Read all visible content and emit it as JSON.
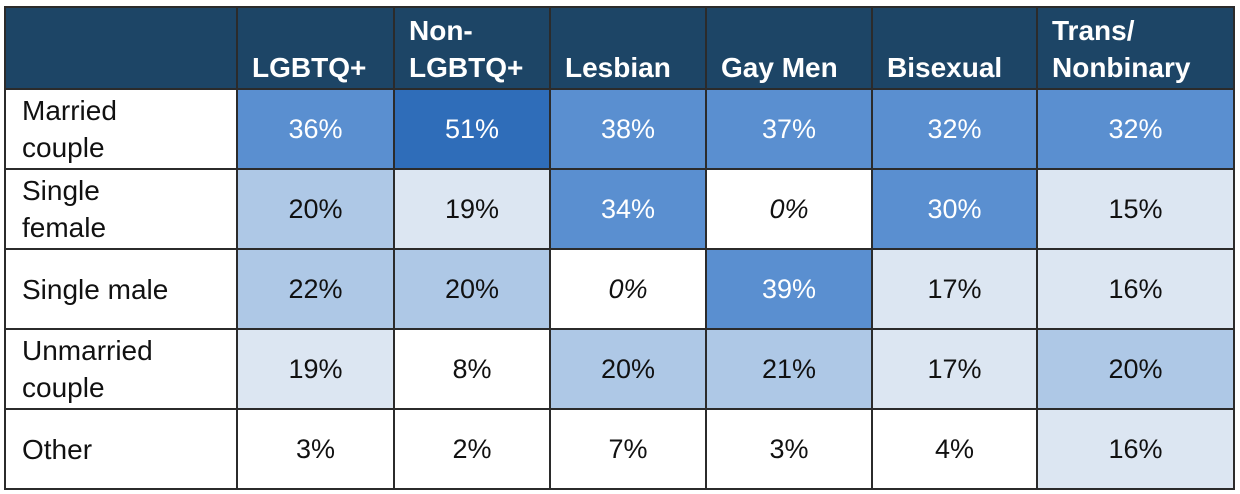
{
  "chart_data": {
    "type": "heatmap",
    "columns": [
      "LGBTQ+",
      "Non-LGBTQ+",
      "Lesbian",
      "Gay Men",
      "Bisexual",
      "Trans/ Nonbinary"
    ],
    "column_lines": [
      [
        "LGBTQ+"
      ],
      [
        "Non-",
        "LGBTQ+"
      ],
      [
        "Lesbian"
      ],
      [
        "Gay Men"
      ],
      [
        "Bisexual"
      ],
      [
        "Trans/",
        "Nonbinary"
      ]
    ],
    "rows": [
      {
        "label": "Married couple",
        "label_lines": [
          "Married",
          "couple"
        ],
        "values": [
          36,
          51,
          38,
          37,
          32,
          32
        ]
      },
      {
        "label": "Single female",
        "label_lines": [
          "Single",
          "female"
        ],
        "values": [
          20,
          19,
          34,
          0,
          30,
          15
        ]
      },
      {
        "label": "Single male",
        "label_lines": [
          "Single male"
        ],
        "values": [
          22,
          20,
          0,
          39,
          17,
          16
        ]
      },
      {
        "label": "Unmarried couple",
        "label_lines": [
          "Unmarried",
          "couple"
        ],
        "values": [
          19,
          8,
          20,
          21,
          17,
          20
        ]
      },
      {
        "label": "Other",
        "label_lines": [
          "Other"
        ],
        "values": [
          3,
          2,
          7,
          3,
          4,
          16
        ]
      }
    ],
    "value_format": "{v}%",
    "colors": {
      "header_background": "#1d4566",
      "header_text": "#ffffff",
      "scale_white": "#ffffff",
      "scale_lightest": "#dce6f2",
      "scale_light": "#aec8e6",
      "scale_medium": "#5a8fd0",
      "scale_dark": "#2f6db9",
      "dark_text": "#ffffff",
      "light_text": "#111111"
    }
  }
}
